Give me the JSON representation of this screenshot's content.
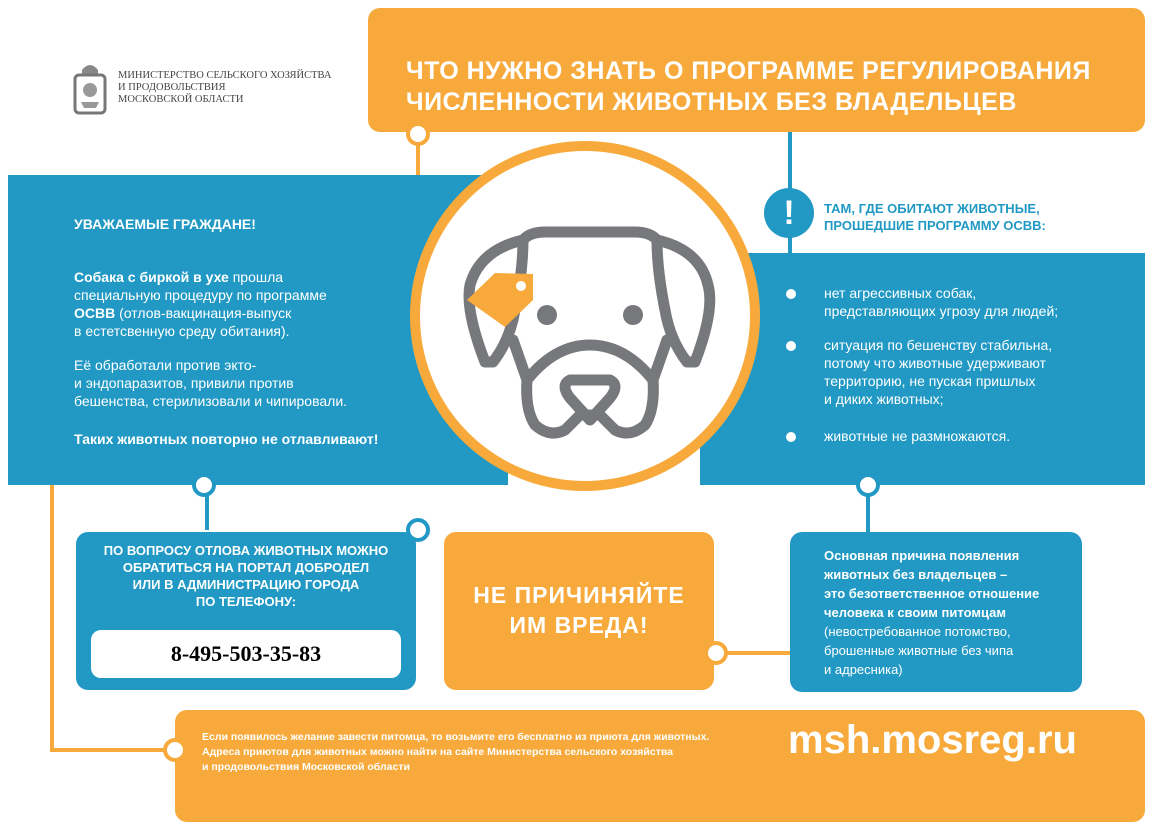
{
  "header": {
    "ministry": [
      "МИНИСТЕРСТВО СЕЛЬСКОГО ХОЗЯЙСТВА",
      "И ПРОДОВОЛЬСТВИЯ",
      "МОСКОВСКОЙ ОБЛАСТИ"
    ],
    "title_line1": "ЧТО НУЖНО ЗНАТЬ О ПРОГРАММЕ РЕГУЛИРОВАНИЯ",
    "title_line2": "ЧИСЛЕННОСТИ ЖИВОТНЫХ БЕЗ ВЛАДЕЛЬЦЕВ"
  },
  "left": {
    "greeting": "УВАЖАЕМЫЕ ГРАЖДАНЕ!",
    "p1_bold": "Собака с биркой в ухе",
    "p1_rest1": " прошла",
    "p1_line2": "специальную процедуру по программе",
    "p1_bold2": "ОСВВ",
    "p1_rest3": " (отлов-вакцинация-выпуск",
    "p1_line4": "в естетсвенную среду обитания).",
    "p2": [
      "Её обработали против экто-",
      "и эндопаразитов, привили против",
      "бешенства, стерилизовали и  чипировали."
    ],
    "p3": "Таких животных повторно не отлавливают!"
  },
  "right": {
    "heading": [
      "ТАМ, ГДЕ ОБИТАЮТ ЖИВОТНЫЕ,",
      "ПРОШЕДШИЕ ПРОГРАММУ ОСВВ:"
    ],
    "bullets": [
      [
        "нет агрессивных  собак,",
        "представляющих  угрозу для людей;"
      ],
      [
        "ситуация по бешенству стабильна,",
        "потому что животные удерживают",
        "территорию, не пуская пришлых",
        "и диких животных;"
      ],
      [
        "животные не размножаются."
      ]
    ]
  },
  "contact": {
    "text": [
      "ПО ВОПРОСУ ОТЛОВА ЖИВОТНЫХ МОЖНО",
      "ОБРАТИТЬСЯ НА ПОРТАЛ ДОБРОДЕЛ",
      "ИЛИ В АДМИНИСТРАЦИЮ ГОРОДА",
      "ПО ТЕЛЕФОНУ:"
    ],
    "phone": "8-495-503-35-83"
  },
  "center": {
    "text": [
      "НЕ ПРИЧИНЯЙТЕ",
      "ИМ ВРЕДА!"
    ]
  },
  "cause": {
    "bold": [
      "Основная причина появления",
      "животных без владельцев –",
      "это безответственное отношение",
      "человека к своим питомцам"
    ],
    "rest": [
      "(невостребованное потомство,",
      "брошенные  животные без чипа",
      "и адресника)"
    ]
  },
  "footer": {
    "text": [
      "Если появилось желание завести питомца, то возьмите его бесплатно из приюта для животных.",
      "Адреса приютов для животных можно найти на сайте Министерства сельского хозяйства",
      "и продовольствия Московской области"
    ],
    "site": "msh.mosreg.ru"
  },
  "colors": {
    "orange": "#f7aa3b",
    "blue": "#2199c4",
    "gray": "#77787b"
  }
}
